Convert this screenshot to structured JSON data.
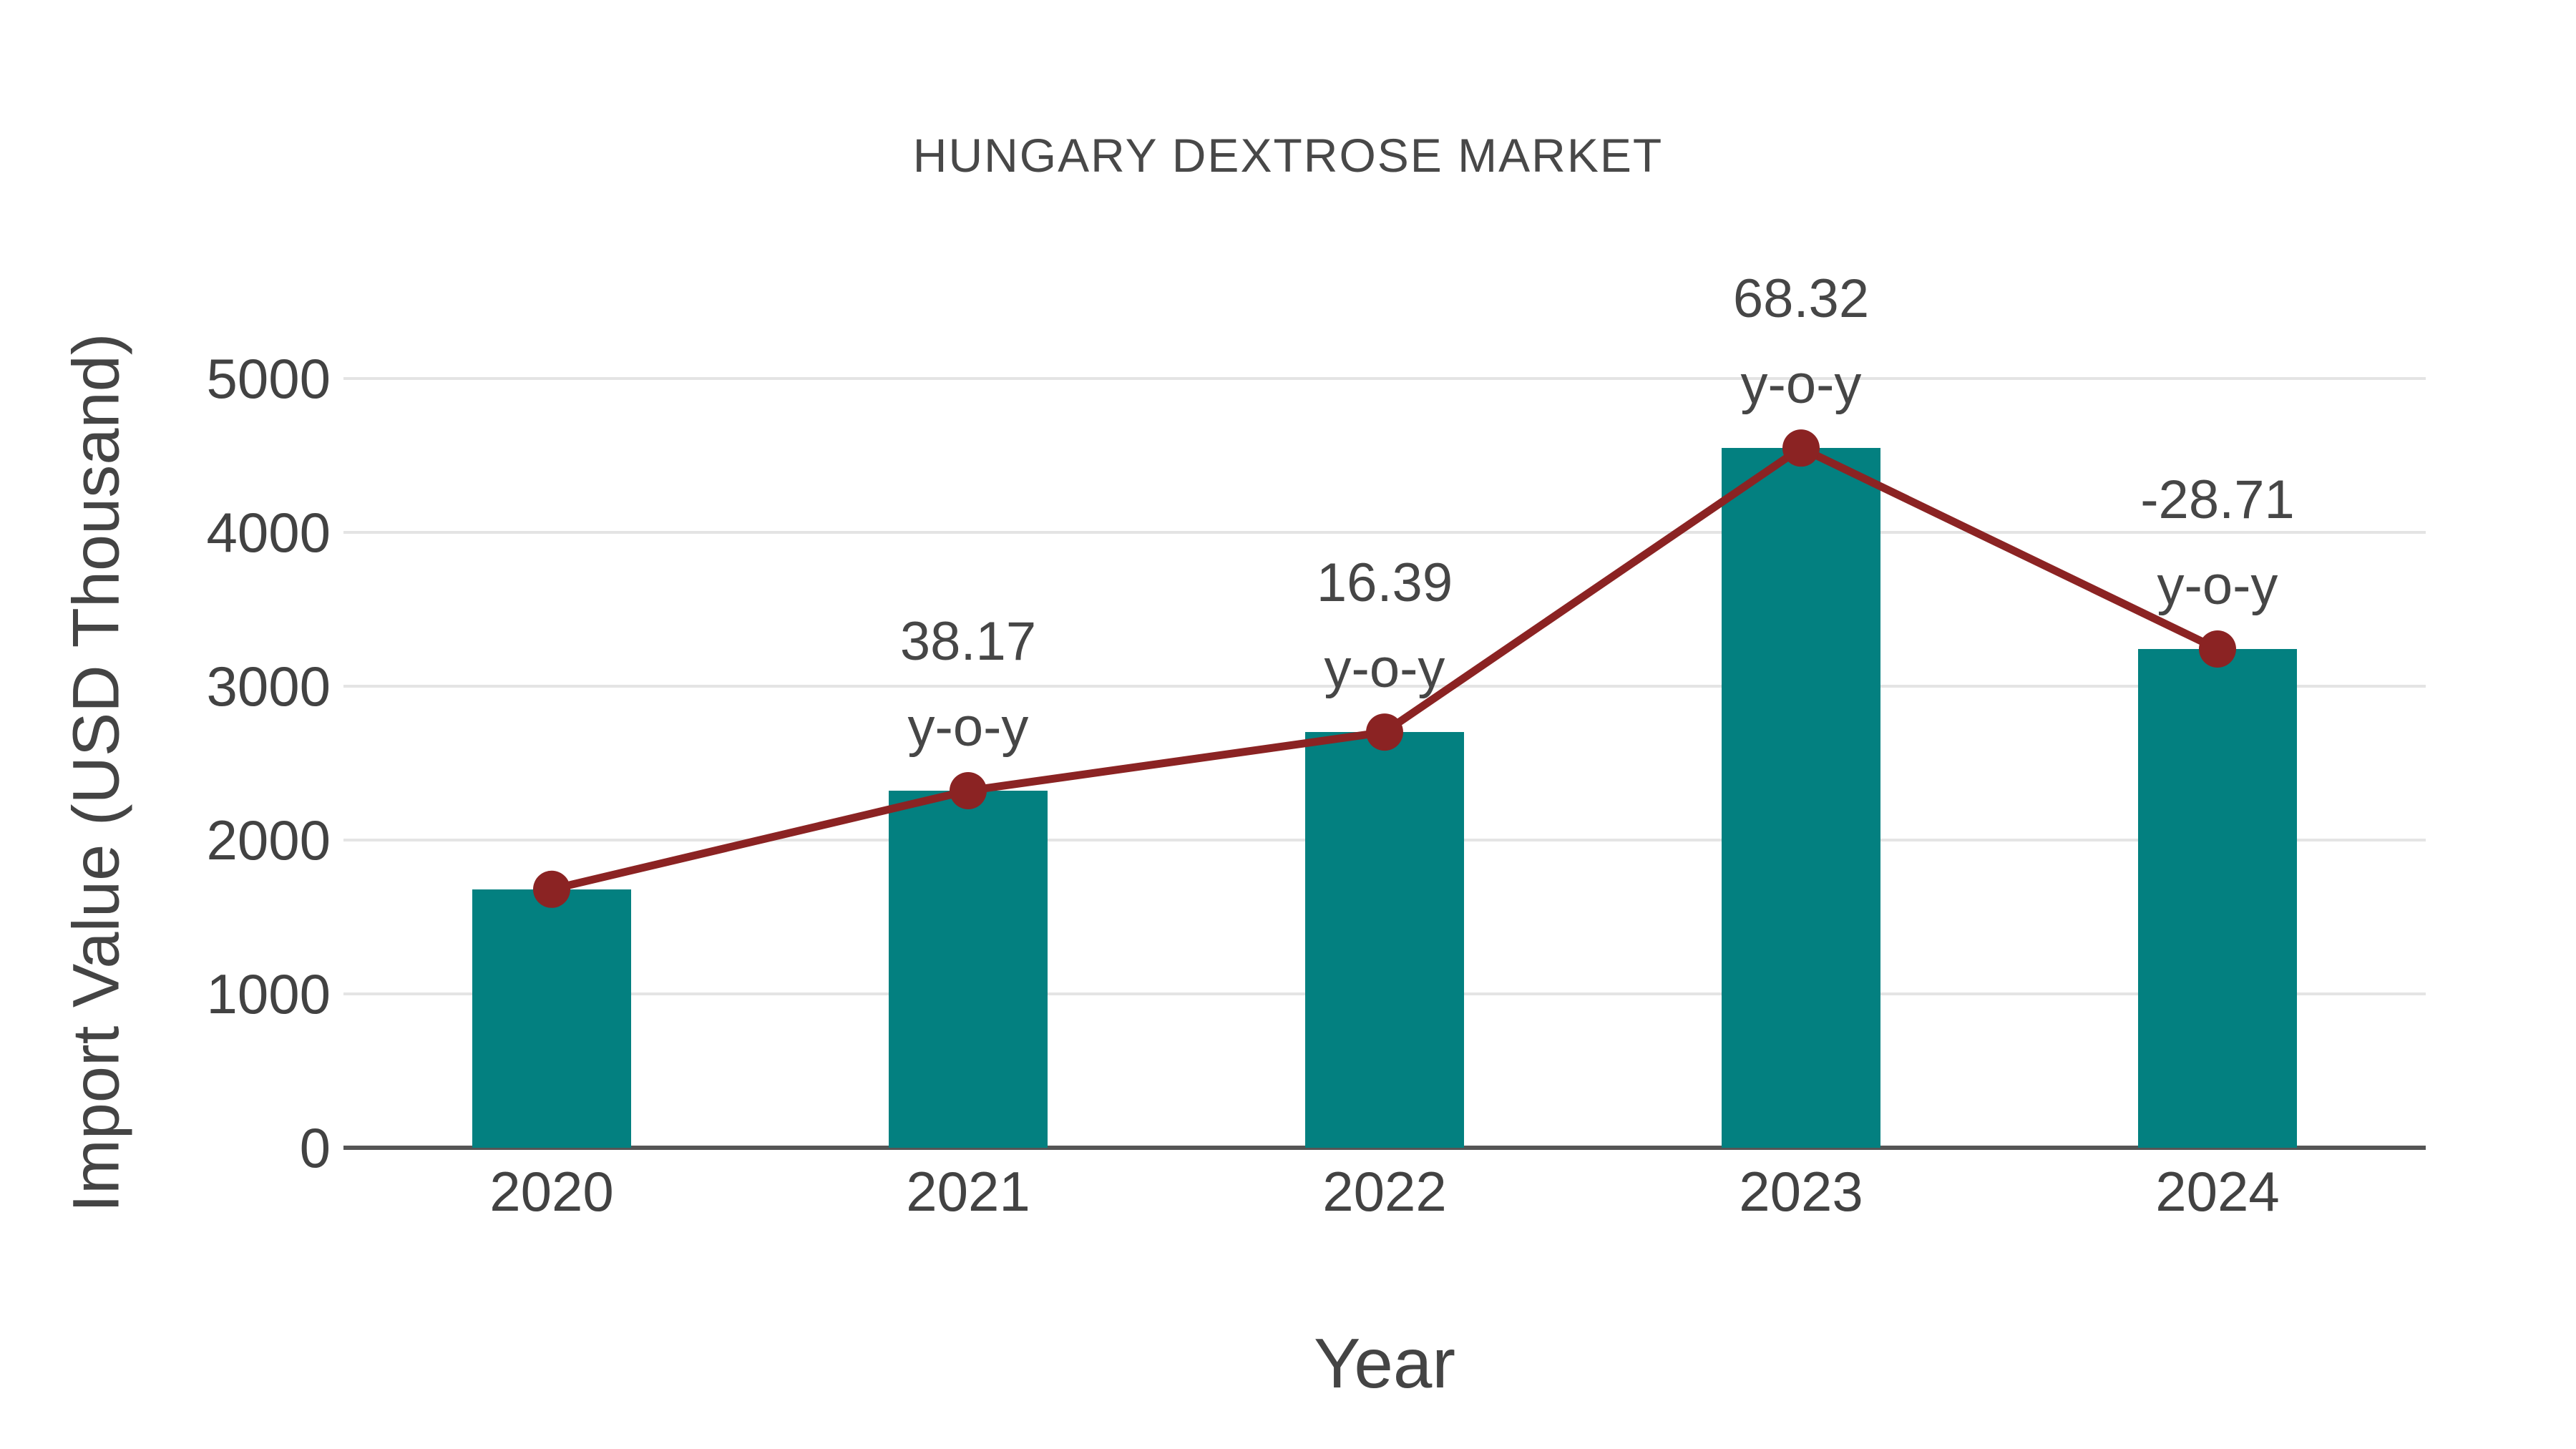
{
  "chart_data": {
    "type": "bar",
    "title": "HUNGARY DEXTROSE MARKET",
    "xlabel": "Year",
    "ylabel": "Import Value (USD Thousand)",
    "categories": [
      "2020",
      "2021",
      "2022",
      "2023",
      "2024"
    ],
    "series": [
      {
        "name": "Import Value",
        "type": "bar",
        "values": [
          1680,
          2321,
          2702,
          4548,
          3242
        ]
      },
      {
        "name": "y-o-y change",
        "type": "line",
        "values": [
          1680,
          2321,
          2702,
          4548,
          3242
        ],
        "point_labels": [
          null,
          38.17,
          16.39,
          68.32,
          -28.71
        ],
        "point_label_suffix": "y-o-y"
      }
    ],
    "ylim": [
      0,
      5000
    ],
    "yticks": [
      0,
      1000,
      2000,
      3000,
      4000,
      5000
    ],
    "grid": "horizontal",
    "legend": "none",
    "colors": {
      "bar": "#038080",
      "line": "#8b2323",
      "marker": "#8b2323",
      "grid": "#e4e4e4",
      "axis": "#555555",
      "text": "#444444"
    }
  }
}
